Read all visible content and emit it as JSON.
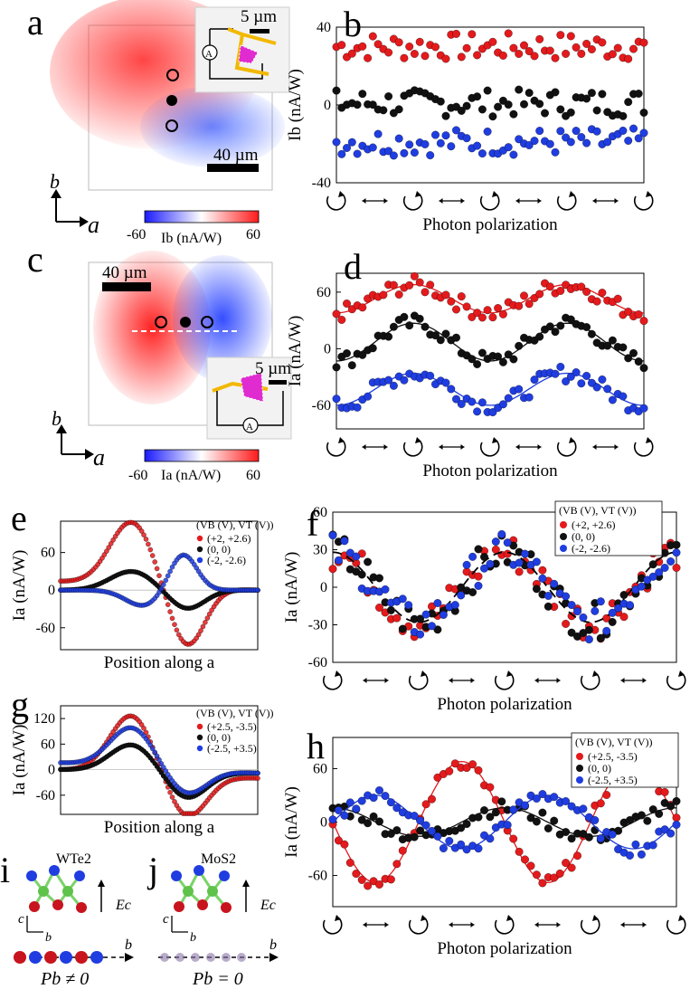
{
  "panel_labels": [
    "a",
    "b",
    "c",
    "d",
    "e",
    "f",
    "g",
    "h",
    "i",
    "j"
  ],
  "colors": {
    "red": "#e41a1c",
    "black": "#111111",
    "blue": "#1f3de0",
    "green": "#5fc24a",
    "lattice_red": "#c8141e",
    "lattice_blue": "#1f3de0",
    "purple": "#8a74a8",
    "yellow": "#f2b800",
    "magenta": "#e02bd0"
  },
  "common": {
    "polarization_label": "Photon polarization",
    "position_label": "Position along a",
    "axis_a": "a",
    "axis_b": "b",
    "axis_c": "c",
    "ammeter": "A"
  },
  "map_a": {
    "scale_small": "5 µm",
    "scale_big": "40 µm",
    "cbar_min": "-60",
    "cbar_max": "60",
    "cbar_label": "Ib (nA/W)"
  },
  "map_c": {
    "scale_small": "5 µm",
    "scale_big": "40 µm",
    "cbar_min": "-60",
    "cbar_max": "60",
    "cbar_label": "Ia (nA/W)"
  },
  "lattice_i": {
    "title": "WTe2",
    "field": "Ec",
    "pol": "Pb ≠ 0"
  },
  "lattice_j": {
    "title": "MoS2",
    "field": "Ec",
    "pol": "Pb = 0"
  },
  "chart_data": [
    {
      "id": "b",
      "type": "scatter",
      "ylabel": "Ib (nA/W)",
      "ylim": [
        -40,
        40
      ],
      "yticks": [
        "40",
        "0",
        "-40"
      ],
      "xlabel": "Photon polarization",
      "x_range": [
        0,
        4
      ],
      "series": [
        {
          "name": "red",
          "mean": 30,
          "amp": 0
        },
        {
          "name": "black",
          "mean": 1,
          "amp": 0
        },
        {
          "name": "blue",
          "mean": -19,
          "amp": 0
        }
      ]
    },
    {
      "id": "d",
      "type": "scatter",
      "ylabel": "Ia (nA/W)",
      "ylim": [
        -85,
        80
      ],
      "yticks": [
        "60",
        "0",
        "-60"
      ],
      "xlabel": "Photon polarization",
      "x_range": [
        0,
        4
      ],
      "series": [
        {
          "name": "red",
          "mean": 53,
          "amp": 15
        },
        {
          "name": "black",
          "mean": 7,
          "amp": 20
        },
        {
          "name": "blue",
          "mean": -43,
          "amp": 17
        }
      ]
    },
    {
      "id": "e",
      "type": "line",
      "ylabel": "Ia (nA/W)",
      "ylim": [
        -95,
        110
      ],
      "yticks": [
        "60",
        "0",
        "-60"
      ],
      "xlabel": "Position along a",
      "legend_title": "(VB (V), VT (V))",
      "series": [
        {
          "name": "(+2, +2.6)",
          "pos": 100,
          "neg": -95
        },
        {
          "name": "(0, 0)",
          "pos": 30,
          "neg": -30
        },
        {
          "name": "(-2, -2.6)",
          "pos": -25,
          "neg": 58
        }
      ]
    },
    {
      "id": "f",
      "type": "scatter",
      "ylabel": "Ia (nA/W)",
      "ylim": [
        -60,
        60
      ],
      "yticks": [
        "60",
        "30",
        "0",
        "-30",
        "-60"
      ],
      "xlabel": "Photon polarization",
      "x_range": [
        0,
        4
      ],
      "legend_title": "(VB (V), VT (V))",
      "series": [
        {
          "name": "(+2, +2.6)",
          "amp": 28
        },
        {
          "name": "(0, 0)",
          "amp": 28
        },
        {
          "name": "(-2, -2.6)",
          "amp": 28
        }
      ]
    },
    {
      "id": "g",
      "type": "line",
      "ylabel": "Ia (nA/W)",
      "ylim": [
        -105,
        150
      ],
      "yticks": [
        "120",
        "60",
        "0",
        "-60"
      ],
      "xlabel": "Position along a",
      "legend_title": "(VB (V), VT (V))",
      "series": [
        {
          "name": "(+2.5, -3.5)",
          "pos": 135,
          "neg": -100
        },
        {
          "name": "(0, 0)",
          "pos": 62,
          "neg": -62
        },
        {
          "name": "(-2.5, +3.5)",
          "pos": 92,
          "neg": -58
        }
      ]
    },
    {
      "id": "h",
      "type": "scatter",
      "ylabel": "Ia (nA/W)",
      "ylim": [
        -95,
        95
      ],
      "yticks": [
        "60",
        "0",
        "-60"
      ],
      "xlabel": "Photon polarization",
      "x_range": [
        0,
        4
      ],
      "legend_title": "(VB (V), VT (V))",
      "series": [
        {
          "name": "(+2.5, -3.5)",
          "amp": 68,
          "sign": 1
        },
        {
          "name": "(0, 0)",
          "amp": 16,
          "sign": 1
        },
        {
          "name": "(-2.5, +3.5)",
          "amp": 30,
          "sign": -1
        }
      ]
    }
  ]
}
